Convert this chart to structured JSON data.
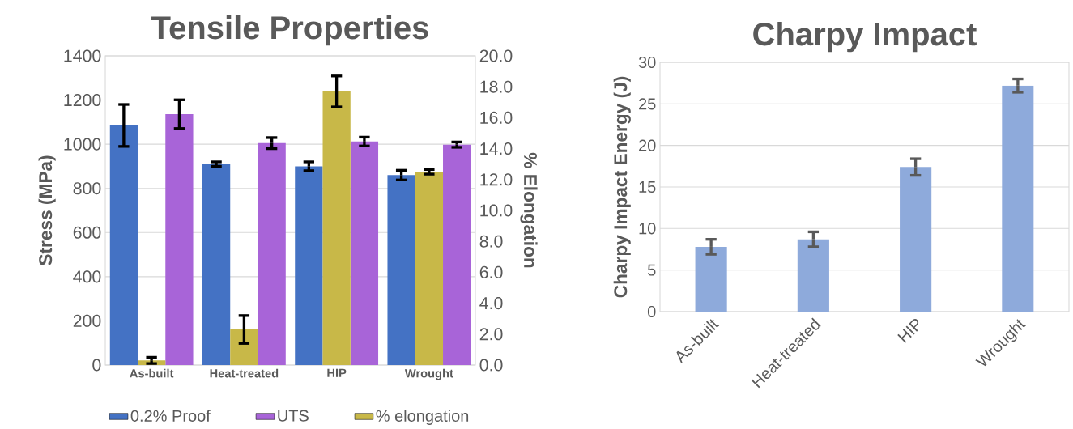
{
  "chart_data": [
    {
      "type": "bar",
      "title": "Tensile Properties",
      "ylabel": "Stress (MPa)",
      "y2label": "% Elongation",
      "categories": [
        "As-built",
        "Heat-treated",
        "HIP",
        "Wrought"
      ],
      "series": [
        {
          "name": "0.2% Proof",
          "color": "#4472c4",
          "values": [
            1085,
            910,
            900,
            860
          ],
          "errors": [
            95,
            10,
            20,
            22
          ]
        },
        {
          "name": "UTS",
          "color": "#a864d8",
          "values": [
            1136,
            1005,
            1012,
            998
          ],
          "errors": [
            65,
            25,
            20,
            12
          ]
        },
        {
          "name": "% elongation",
          "color": "#c8b848",
          "axis": "y2",
          "values": [
            0.3,
            2.3,
            17.7,
            12.5
          ],
          "errors": [
            0.2,
            0.9,
            1.0,
            0.15
          ]
        }
      ],
      "ylim": [
        0,
        1400
      ],
      "yticks": [
        0,
        200,
        400,
        600,
        800,
        1000,
        1200,
        1400
      ],
      "y2lim": [
        0,
        20
      ],
      "y2ticks": [
        {
          "value": 0,
          "label": "0.0"
        },
        {
          "value": 2,
          "label": "2.0"
        },
        {
          "value": 4,
          "label": "4.0"
        },
        {
          "value": 6,
          "label": "6.0"
        },
        {
          "value": 8,
          "label": "8.0"
        },
        {
          "value": 10,
          "label": "10.0"
        },
        {
          "value": 12,
          "label": "12.0"
        },
        {
          "value": 14,
          "label": "14.0"
        },
        {
          "value": 16,
          "label": "16.0"
        },
        {
          "value": 18,
          "label": "18.0"
        },
        {
          "value": 20,
          "label": "20.0"
        }
      ],
      "grid": "y",
      "legend": "bottom"
    },
    {
      "type": "bar",
      "title": "Charpy Impact",
      "ylabel": "Charpy Impact Energy (J)",
      "categories": [
        "As-built",
        "Heat-treated",
        "HIP",
        "Wrought"
      ],
      "values": [
        7.8,
        8.7,
        17.4,
        27.2
      ],
      "errors": [
        0.9,
        0.9,
        1.0,
        0.8
      ],
      "color": "#8eaadb",
      "ylim": [
        0,
        30
      ],
      "yticks": [
        0,
        5,
        10,
        15,
        20,
        25,
        30
      ],
      "grid": "y"
    }
  ]
}
